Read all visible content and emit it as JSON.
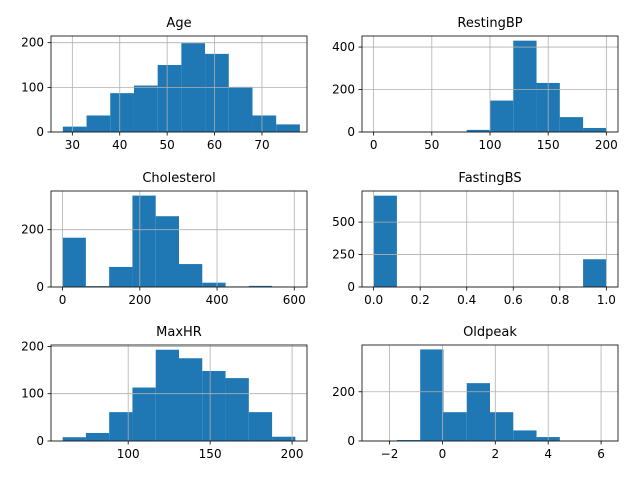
{
  "chart_data": [
    {
      "type": "bar",
      "title": "Age",
      "bins": [
        [
          28,
          33,
          12
        ],
        [
          33,
          38,
          37
        ],
        [
          38,
          43,
          87
        ],
        [
          43,
          48,
          104
        ],
        [
          48,
          53,
          150
        ],
        [
          53,
          58,
          199
        ],
        [
          58,
          63,
          175
        ],
        [
          63,
          68,
          101
        ],
        [
          68,
          73,
          37
        ],
        [
          73,
          78,
          17
        ]
      ],
      "xlim": [
        25.5,
        79.5
      ],
      "ylim": [
        0,
        215
      ],
      "xticks": [
        30,
        40,
        50,
        60,
        70
      ],
      "yticks": [
        0,
        100,
        200
      ],
      "xtick_labels": [
        "30",
        "40",
        "50",
        "60",
        "70"
      ],
      "ytick_labels": [
        "0",
        "100",
        "200"
      ],
      "grid": true
    },
    {
      "type": "bar",
      "title": "RestingBP",
      "bins": [
        [
          0,
          20,
          1
        ],
        [
          20,
          40,
          0
        ],
        [
          40,
          60,
          0
        ],
        [
          60,
          80,
          0
        ],
        [
          80,
          100,
          10
        ],
        [
          100,
          120,
          148
        ],
        [
          120,
          140,
          430
        ],
        [
          140,
          160,
          231
        ],
        [
          160,
          180,
          70
        ],
        [
          180,
          200,
          19
        ]
      ],
      "xlim": [
        -10,
        210
      ],
      "ylim": [
        0,
        452
      ],
      "xticks": [
        0,
        50,
        100,
        150,
        200
      ],
      "yticks": [
        0,
        200,
        400
      ],
      "xtick_labels": [
        "0",
        "50",
        "100",
        "150",
        "200"
      ],
      "ytick_labels": [
        "0",
        "200",
        "400"
      ],
      "grid": true
    },
    {
      "type": "bar",
      "title": "Cholesterol",
      "bins": [
        [
          0,
          60.3,
          172
        ],
        [
          60.3,
          120.6,
          3
        ],
        [
          120.6,
          180.9,
          70
        ],
        [
          180.9,
          241.2,
          319
        ],
        [
          241.2,
          301.5,
          247
        ],
        [
          301.5,
          361.8,
          80
        ],
        [
          361.8,
          422.1,
          15
        ],
        [
          422.1,
          482.4,
          2
        ],
        [
          482.4,
          542.7,
          4
        ],
        [
          542.7,
          603,
          1
        ]
      ],
      "xlim": [
        -30,
        633
      ],
      "ylim": [
        0,
        335
      ],
      "xticks": [
        0,
        200,
        400,
        600
      ],
      "yticks": [
        0,
        200
      ],
      "xtick_labels": [
        "0",
        "200",
        "400",
        "600"
      ],
      "ytick_labels": [
        "0",
        "200"
      ],
      "grid": true
    },
    {
      "type": "bar",
      "title": "FastingBS",
      "bins": [
        [
          0,
          0.1,
          704
        ],
        [
          0.1,
          0.2,
          0
        ],
        [
          0.2,
          0.3,
          0
        ],
        [
          0.3,
          0.4,
          0
        ],
        [
          0.4,
          0.5,
          0
        ],
        [
          0.5,
          0.6,
          0
        ],
        [
          0.6,
          0.7,
          0
        ],
        [
          0.7,
          0.8,
          0
        ],
        [
          0.8,
          0.9,
          0
        ],
        [
          0.9,
          1.0,
          214
        ]
      ],
      "xlim": [
        -0.05,
        1.05
      ],
      "ylim": [
        0,
        740
      ],
      "xticks": [
        0.0,
        0.2,
        0.4,
        0.6,
        0.8,
        1.0
      ],
      "yticks": [
        0,
        250,
        500
      ],
      "xtick_labels": [
        "0.0",
        "0.2",
        "0.4",
        "0.6",
        "0.8",
        "1.0"
      ],
      "ytick_labels": [
        "0",
        "250",
        "500"
      ],
      "grid": true
    },
    {
      "type": "bar",
      "title": "MaxHR",
      "bins": [
        [
          60,
          74.2,
          8
        ],
        [
          74.2,
          88.4,
          17
        ],
        [
          88.4,
          102.6,
          61
        ],
        [
          102.6,
          116.8,
          113
        ],
        [
          116.8,
          131,
          193
        ],
        [
          131,
          145.2,
          175
        ],
        [
          145.2,
          159.4,
          148
        ],
        [
          159.4,
          173.6,
          133
        ],
        [
          173.6,
          187.8,
          61
        ],
        [
          187.8,
          202,
          9
        ]
      ],
      "xlim": [
        52.9,
        209.1
      ],
      "ylim": [
        0,
        203
      ],
      "xticks": [
        100,
        150,
        200
      ],
      "yticks": [
        0,
        100,
        200
      ],
      "xtick_labels": [
        "100",
        "150",
        "200"
      ],
      "ytick_labels": [
        "0",
        "100",
        "200"
      ],
      "grid": true
    },
    {
      "type": "bar",
      "title": "Oldpeak",
      "bins": [
        [
          -2.6,
          -1.72,
          1
        ],
        [
          -1.72,
          -0.84,
          4
        ],
        [
          -0.84,
          0.04,
          372
        ],
        [
          0.04,
          0.92,
          117
        ],
        [
          0.92,
          1.8,
          235
        ],
        [
          1.8,
          2.68,
          117
        ],
        [
          2.68,
          3.56,
          43
        ],
        [
          3.56,
          4.44,
          16
        ],
        [
          4.44,
          5.32,
          2
        ],
        [
          5.32,
          6.2,
          1
        ]
      ],
      "xlim": [
        -3.04,
        6.64
      ],
      "ylim": [
        0,
        390
      ],
      "xticks": [
        -2,
        0,
        2,
        4,
        6
      ],
      "yticks": [
        0,
        200
      ],
      "xtick_labels": [
        "−2",
        "0",
        "2",
        "4",
        "6"
      ],
      "ytick_labels": [
        "0",
        "200"
      ],
      "grid": true
    }
  ],
  "colors": {
    "bar": "#1f77b4",
    "grid": "#b0b0b0",
    "axes": "#000000",
    "background": "#ffffff"
  }
}
